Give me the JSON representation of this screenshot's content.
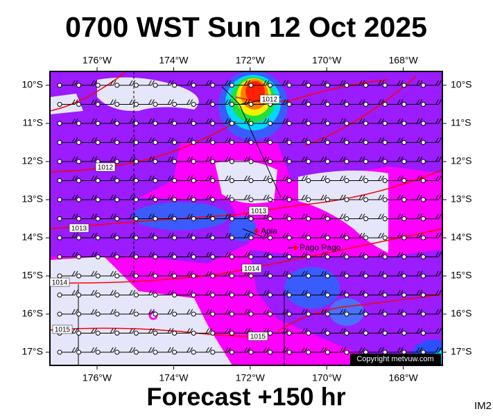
{
  "header": {
    "title": "0700 WST Sun 12 Oct 2025"
  },
  "map": {
    "lon_ticks": [
      {
        "value": -176,
        "label": "176°W"
      },
      {
        "value": -174,
        "label": "174°W"
      },
      {
        "value": -172,
        "label": "172°W"
      },
      {
        "value": -170,
        "label": "170°W"
      },
      {
        "value": -168,
        "label": "168°W"
      }
    ],
    "lat_ticks": [
      {
        "value": -10,
        "label": "10°S"
      },
      {
        "value": -11,
        "label": "11°S"
      },
      {
        "value": -12,
        "label": "12°S"
      },
      {
        "value": -13,
        "label": "13°S"
      },
      {
        "value": -14,
        "label": "14°S"
      },
      {
        "value": -15,
        "label": "15°S"
      },
      {
        "value": -16,
        "label": "16°S"
      },
      {
        "value": -17,
        "label": "17°S"
      }
    ],
    "isobars": [
      1012,
      1012,
      1013,
      1013,
      1014,
      1014,
      1015,
      1015
    ],
    "places": [
      "Apia",
      "Pago Pago"
    ]
  },
  "footer": {
    "forecast": "Forecast +150 hr",
    "image_id": "IM2",
    "copyright": "Copyright metvuw.com"
  }
}
